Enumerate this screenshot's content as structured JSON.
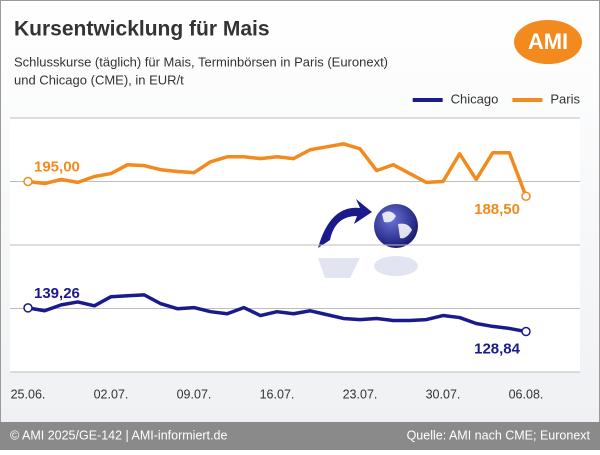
{
  "chart_data": {
    "type": "line",
    "title": "Kursentwicklung für Mais",
    "subtitle": [
      "Schlusskurse (täglich) für Mais, Terminbörsen in Paris (Euronext)",
      "und Chicago (CME), in EUR/t"
    ],
    "logo": "AMI",
    "footer_left": "© AMI 2025/GE-142 | AMI-informiert.de",
    "footer_right": "Quelle: AMI nach CME; Euronext",
    "legend": "top-right",
    "grid": true,
    "categories": [
      "25.06.",
      null,
      null,
      null,
      null,
      "02.07.",
      null,
      null,
      null,
      null,
      "09.07.",
      null,
      null,
      null,
      null,
      "16.07.",
      null,
      null,
      null,
      null,
      "23.07.",
      null,
      null,
      null,
      null,
      "30.07.",
      null,
      null,
      null,
      null,
      "06.08."
    ],
    "ylim": [
      111,
      223
    ],
    "yticks": [
      111,
      139,
      167,
      195,
      223
    ],
    "series": [
      {
        "name": "Chicago",
        "color": "#1a1a8c",
        "values": [
          139.26,
          138.0,
          140.6,
          141.9,
          140.2,
          144.2,
          144.6,
          145.0,
          141.1,
          138.9,
          139.4,
          137.6,
          136.7,
          139.4,
          135.9,
          137.6,
          136.7,
          138.0,
          136.3,
          134.6,
          134.1,
          134.6,
          133.7,
          133.7,
          134.1,
          135.9,
          135.0,
          132.4,
          131.1,
          130.2,
          128.84
        ],
        "value_labels": [
          "139,26",
          null,
          null,
          null,
          null,
          null,
          null,
          null,
          null,
          null,
          null,
          null,
          null,
          null,
          null,
          null,
          null,
          null,
          null,
          null,
          null,
          null,
          null,
          null,
          null,
          null,
          null,
          null,
          null,
          null,
          "128,84"
        ]
      },
      {
        "name": "Paris",
        "color": "#f28a1e",
        "values": [
          195.0,
          194.1,
          195.9,
          194.6,
          197.2,
          198.5,
          202.4,
          202.0,
          200.2,
          199.4,
          198.9,
          203.7,
          205.9,
          205.9,
          205.1,
          205.9,
          205.1,
          209.0,
          210.3,
          211.6,
          209.4,
          199.8,
          202.4,
          198.5,
          194.6,
          195.0,
          207.2,
          195.9,
          207.7,
          207.7,
          188.5
        ],
        "value_labels": [
          "195,00",
          null,
          null,
          null,
          null,
          null,
          null,
          null,
          null,
          null,
          null,
          null,
          null,
          null,
          null,
          null,
          null,
          null,
          null,
          null,
          null,
          null,
          null,
          null,
          null,
          null,
          null,
          null,
          null,
          null,
          "188,50"
        ]
      }
    ]
  }
}
